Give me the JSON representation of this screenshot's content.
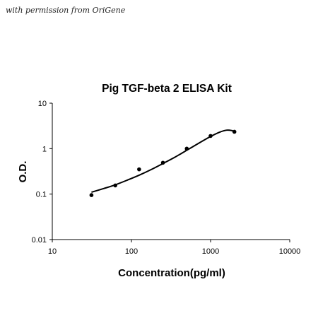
{
  "watermark": "with permission from OriGene",
  "chart_data": {
    "type": "scatter",
    "title": "Pig TGF-beta 2 ELISA Kit",
    "xlabel": "Concentration(pg/ml)",
    "ylabel": "O.D.",
    "xscale": "log",
    "yscale": "log",
    "xlim": [
      10,
      10000
    ],
    "ylim": [
      0.01,
      10
    ],
    "xticks": [
      10,
      100,
      1000,
      10000
    ],
    "xtick_labels": [
      "10",
      "100",
      "1000",
      "10000"
    ],
    "yticks": [
      0.01,
      0.1,
      1,
      10
    ],
    "ytick_labels": [
      "0.01",
      "0.1",
      "1",
      "10"
    ],
    "grid": false,
    "legend": "none",
    "series": [
      {
        "x": [
          31.25,
          62.5,
          125,
          250,
          500,
          1000,
          2000
        ],
        "y": [
          0.095,
          0.155,
          0.35,
          0.49,
          1.0,
          1.9,
          2.35
        ]
      }
    ],
    "fit_curve": {
      "x": [
        31.25,
        45,
        62.5,
        90,
        125,
        180,
        250,
        350,
        500,
        700,
        1000,
        1300,
        1600,
        1850,
        2000
      ],
      "y": [
        0.11,
        0.133,
        0.16,
        0.205,
        0.26,
        0.35,
        0.47,
        0.64,
        0.92,
        1.3,
        1.85,
        2.3,
        2.55,
        2.5,
        2.35
      ]
    }
  }
}
